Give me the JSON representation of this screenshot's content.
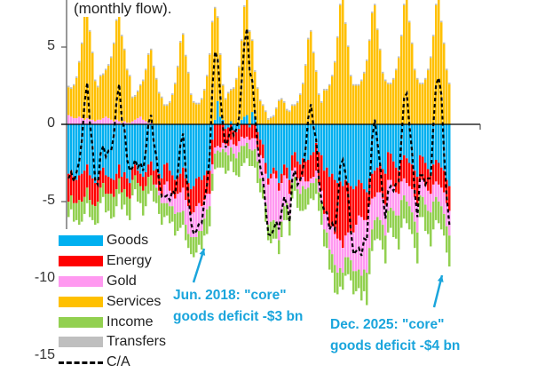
{
  "subtitle": "(monthly flow).",
  "chart_data": {
    "type": "bar",
    "stacked": true,
    "ylim": [
      -15,
      8
    ],
    "yticks": [
      "5",
      "0",
      "-5",
      "-10",
      "-15"
    ],
    "ytick_values": [
      5,
      0,
      -5,
      -10,
      -15
    ],
    "grid": false,
    "legend_position": "bottom-left",
    "colors": {
      "goods": "#00b0f0",
      "energy": "#ff0000",
      "gold": "#ff99f0",
      "services": "#ffc000",
      "income": "#92d050",
      "transfers": "#bfbfbf",
      "ca": "#000000"
    },
    "legend": [
      {
        "key": "goods",
        "label": "Goods"
      },
      {
        "key": "energy",
        "label": "Energy"
      },
      {
        "key": "gold",
        "label": "Gold"
      },
      {
        "key": "services",
        "label": "Services"
      },
      {
        "key": "income",
        "label": "Income"
      },
      {
        "key": "transfers",
        "label": "Transfers"
      },
      {
        "key": "ca",
        "label": "C/A"
      }
    ],
    "series": {
      "goods": [
        -3.2,
        -3.0,
        -3.4,
        -3.6,
        -3.3,
        -3.2,
        -3.0,
        -2.6,
        -3.3,
        -3.5,
        -3.8,
        -3.6,
        -3.0,
        -2.8,
        -3.3,
        -3.4,
        -3.5,
        -3.6,
        -3.2,
        -2.6,
        -3.4,
        -3.1,
        -3.5,
        -3.8,
        -2.8,
        -2.6,
        -3.0,
        -3.2,
        -3.4,
        -3.1,
        -2.6,
        -2.4,
        -3.0,
        -2.9,
        -3.2,
        -3.5,
        -2.6,
        -2.5,
        -3.0,
        -3.3,
        -3.6,
        -3.4,
        -3.2,
        -2.8,
        -3.5,
        -3.8,
        -4.2,
        -4.0,
        -3.5,
        -3.4,
        -3.6,
        -3.3,
        -3.0,
        -3.0,
        -1.0,
        0.3,
        1.5,
        0.5,
        0.3,
        -0.3,
        -0.2,
        0.2,
        -0.4,
        -0.5,
        -0.3,
        0.3,
        0.5,
        0.6,
        -0.2,
        0.8,
        0.5,
        -0.5,
        -1.0,
        -1.3,
        -2.5,
        -3.5,
        -3.2,
        -2.8,
        -3.0,
        -3.8,
        -3.2,
        -2.6,
        -2.8,
        -3.6,
        -2.0,
        -1.8,
        -2.4,
        -2.6,
        -2.2,
        -2.4,
        -2.3,
        -2.0,
        -1.8,
        -1.2,
        -1.8,
        -2.0,
        -3.0,
        -2.8,
        -3.4,
        -3.2,
        -3.6,
        -3.8,
        -3.7,
        -4.0,
        -3.6,
        -3.8,
        -4.0,
        -4.2,
        -4.0,
        -3.6,
        -3.8,
        -4.2,
        -4.4,
        -3.5,
        -3.2,
        -3.0,
        -2.8,
        -2.6,
        -2.9,
        -3.2,
        -1.8,
        -1.9,
        -2.4,
        -2.8,
        -3.0,
        -2.3,
        -2.0,
        -2.2,
        -2.5,
        -2.6,
        -3.0,
        -3.4,
        -2.0,
        -2.1,
        -2.5,
        -2.9,
        -3.2,
        -2.6,
        -2.3,
        -2.5,
        -2.8,
        -3.0,
        -3.6,
        -4.0
      ],
      "energy": [
        -1.8,
        -1.6,
        -1.7,
        -1.5,
        -1.6,
        -1.8,
        -1.7,
        -1.5,
        -1.6,
        -1.7,
        -1.5,
        -1.4,
        -1.1,
        -1.0,
        -1.2,
        -1.1,
        -1.0,
        -1.1,
        -1.0,
        -0.9,
        -1.0,
        -1.1,
        -1.2,
        -1.0,
        -0.8,
        -0.7,
        -0.8,
        -0.8,
        -0.9,
        -0.9,
        -0.8,
        -0.9,
        -0.9,
        -1.0,
        -1.1,
        -1.2,
        -1.3,
        -1.2,
        -1.3,
        -1.2,
        -1.2,
        -1.1,
        -1.2,
        -1.3,
        -1.4,
        -1.5,
        -1.6,
        -1.7,
        -1.8,
        -1.7,
        -1.7,
        -1.6,
        -1.5,
        -1.5,
        -1.6,
        -1.5,
        -1.4,
        -1.5,
        -1.2,
        -1.0,
        -1.2,
        -1.0,
        -0.9,
        -0.9,
        -0.8,
        -0.8,
        -0.9,
        -0.8,
        -0.8,
        -0.9,
        -0.9,
        -1.0,
        -1.0,
        -0.9,
        -0.7,
        -0.4,
        -0.3,
        -0.4,
        -0.5,
        -0.5,
        -0.6,
        -0.7,
        -0.7,
        -0.9,
        -1.0,
        -1.0,
        -1.1,
        -1.1,
        -1.2,
        -1.3,
        -1.4,
        -1.5,
        -1.6,
        -1.8,
        -2.0,
        -2.3,
        -2.8,
        -3.0,
        -3.2,
        -3.4,
        -3.5,
        -3.6,
        -3.8,
        -4.0,
        -3.6,
        -3.2,
        -3.0,
        -2.8,
        -2.5,
        -2.3,
        -2.2,
        -2.0,
        -1.8,
        -1.7,
        -1.6,
        -1.7,
        -1.6,
        -1.8,
        -1.9,
        -2.0,
        -1.8,
        -1.7,
        -1.6,
        -1.6,
        -1.5,
        -1.4,
        -1.5,
        -1.6,
        -1.5,
        -1.6,
        -1.7,
        -1.8,
        -1.6,
        -1.5,
        -1.5,
        -1.4,
        -1.3,
        -1.3,
        -1.4,
        -1.4,
        -1.3,
        -1.4,
        -1.5,
        -1.6
      ],
      "gold": [
        0.6,
        0.5,
        0.4,
        0.4,
        0.5,
        0.4,
        0.3,
        0.4,
        0.3,
        0.3,
        0.2,
        0.3,
        0.3,
        0.4,
        0.5,
        0.4,
        0.3,
        0.2,
        0.3,
        0.2,
        0.1,
        0.2,
        0.1,
        0.1,
        0.2,
        0.3,
        0.4,
        0.5,
        0.3,
        0.2,
        0.1,
        0.1,
        0.0,
        -0.2,
        -0.3,
        -0.4,
        -1.2,
        -1.4,
        -1.0,
        -0.8,
        -1.0,
        -1.2,
        -1.3,
        -1.5,
        -1.6,
        -1.8,
        -1.5,
        -1.6,
        -2.0,
        -1.8,
        -1.6,
        -1.2,
        -1.0,
        -0.8,
        -0.6,
        -0.4,
        -0.3,
        -0.3,
        -0.4,
        -0.5,
        -0.6,
        -0.5,
        -0.6,
        -0.8,
        -0.7,
        -0.6,
        -0.5,
        -0.4,
        -0.6,
        -0.8,
        -0.7,
        -0.9,
        -1.5,
        -1.8,
        -2.0,
        -2.6,
        -2.8,
        -3.0,
        -2.9,
        -3.2,
        -2.5,
        -2.0,
        -1.6,
        -1.4,
        -0.8,
        -0.6,
        -0.7,
        -0.8,
        -0.6,
        -0.5,
        -0.4,
        -0.3,
        -0.4,
        -0.5,
        -0.6,
        -0.8,
        -1.0,
        -1.2,
        -1.5,
        -1.8,
        -2.0,
        -2.2,
        -1.8,
        -1.6,
        -1.4,
        -1.6,
        -1.8,
        -2.5,
        -3.0,
        -3.5,
        -3.8,
        -3.2,
        -3.4,
        -2.8,
        -2.0,
        -1.5,
        -1.6,
        -1.8,
        -1.7,
        -2.0,
        -2.0,
        -1.8,
        -1.6,
        -1.5,
        -1.4,
        -1.2,
        -1.1,
        -1.2,
        -1.3,
        -1.5,
        -1.6,
        -1.8,
        -1.0,
        -1.1,
        -1.2,
        -1.3,
        -1.2,
        -1.1,
        -1.0,
        -1.1,
        -1.2,
        -1.4,
        -1.5,
        -1.6
      ],
      "services": [
        1.8,
        1.8,
        2.1,
        2.6,
        3.5,
        4.8,
        6.8,
        7.3,
        5.7,
        4.3,
        2.6,
        2.1,
        2.8,
        2.8,
        3.0,
        3.4,
        4.0,
        5.0,
        6.4,
        6.8,
        5.6,
        4.6,
        3.4,
        3.0,
        1.5,
        1.5,
        1.7,
        2.0,
        2.5,
        3.3,
        4.4,
        4.7,
        3.7,
        2.9,
        2.0,
        1.7,
        1.2,
        1.2,
        1.4,
        1.9,
        2.6,
        3.7,
        5.3,
        5.8,
        4.4,
        3.3,
        1.9,
        1.4,
        1.3,
        1.3,
        1.6,
        2.2,
        3.1,
        4.5,
        6.6,
        7.2,
        5.4,
        4.0,
        2.2,
        1.6,
        2.0,
        2.0,
        2.3,
        2.9,
        3.7,
        5.1,
        7.1,
        7.7,
        6.0,
        4.6,
        2.9,
        2.3,
        1.5,
        1.2,
        0.8,
        0.3,
        0.4,
        0.5,
        1.0,
        1.5,
        1.6,
        1.4,
        0.9,
        0.8,
        1.2,
        1.2,
        1.4,
        1.9,
        2.6,
        3.8,
        5.5,
        6.0,
        4.6,
        3.4,
        1.9,
        1.4,
        2.2,
        2.2,
        2.5,
        3.1,
        4.0,
        5.6,
        7.7,
        8.3,
        6.5,
        5.0,
        3.1,
        2.5,
        2.5,
        2.5,
        2.8,
        3.3,
        4.1,
        5.4,
        7.2,
        7.7,
        6.1,
        4.8,
        3.3,
        2.8,
        2.6,
        2.6,
        2.9,
        3.5,
        4.3,
        5.7,
        7.7,
        8.3,
        6.6,
        5.2,
        3.5,
        2.9,
        2.6,
        2.6,
        2.9,
        3.5,
        4.3,
        5.7,
        7.7,
        8.3,
        6.6,
        5.2,
        3.5,
        2.6
      ],
      "income": [
        -1.0,
        -0.9,
        -1.2,
        -1.1,
        -1.6,
        -1.3,
        -1.1,
        -1.0,
        -1.1,
        -1.0,
        -1.2,
        -1.4,
        -1.0,
        -0.9,
        -1.2,
        -1.1,
        -1.6,
        -1.3,
        -1.1,
        -1.0,
        -1.1,
        -1.0,
        -1.2,
        -1.4,
        -1.0,
        -0.9,
        -1.2,
        -1.1,
        -1.6,
        -1.3,
        -1.1,
        -1.0,
        -1.1,
        -1.0,
        -1.2,
        -1.4,
        -0.9,
        -0.8,
        -1.1,
        -1.0,
        -1.4,
        -1.2,
        -1.0,
        -0.9,
        -1.0,
        -0.9,
        -1.1,
        -1.3,
        -1.0,
        -0.9,
        -1.2,
        -1.1,
        -1.6,
        -1.3,
        -1.1,
        -1.0,
        -1.1,
        -1.0,
        -1.2,
        -1.4,
        -1.0,
        -0.9,
        -1.2,
        -1.1,
        -1.6,
        -1.3,
        -1.1,
        -1.0,
        -1.1,
        -1.0,
        -1.2,
        -1.4,
        -0.9,
        -0.8,
        -1.1,
        -1.0,
        -1.4,
        -1.2,
        -1.0,
        -0.9,
        -1.0,
        -0.9,
        -1.1,
        -1.3,
        -1.0,
        -0.9,
        -1.2,
        -1.1,
        -1.6,
        -1.3,
        -1.1,
        -1.0,
        -1.1,
        -1.0,
        -1.2,
        -1.4,
        -1.1,
        -1.0,
        -1.3,
        -1.2,
        -1.8,
        -1.4,
        -1.2,
        -1.1,
        -1.2,
        -1.1,
        -1.3,
        -1.5,
        -1.3,
        -1.2,
        -1.6,
        -1.4,
        -2.1,
        -1.7,
        -1.4,
        -1.3,
        -1.4,
        -1.3,
        -1.6,
        -1.8,
        -1.4,
        -1.3,
        -1.7,
        -1.5,
        -2.2,
        -1.8,
        -1.5,
        -1.4,
        -1.5,
        -1.4,
        -1.7,
        -2.0,
        -1.4,
        -1.3,
        -1.7,
        -1.5,
        -2.2,
        -1.8,
        -1.5,
        -1.4,
        -1.5,
        -1.4,
        -1.7,
        -2.0
      ],
      "transfers": [
        0.1,
        0.1,
        0.1,
        0.1,
        0.1,
        0.1,
        0.1,
        0.1,
        0.1,
        0.1,
        0.1,
        0.1,
        0.1,
        0.1,
        0.1,
        0.1,
        0.1,
        0.1,
        0.1,
        0.1,
        0.1,
        0.1,
        0.1,
        0.1,
        0.1,
        0.1,
        0.1,
        0.1,
        0.1,
        0.1,
        0.1,
        0.1,
        0.1,
        0.1,
        0.1,
        0.1,
        0.1,
        0.1,
        0.1,
        0.1,
        0.1,
        0.1,
        0.1,
        0.1,
        0.1,
        0.1,
        0.1,
        0.1,
        0.1,
        0.1,
        0.1,
        0.1,
        0.1,
        0.1,
        0.1,
        0.1,
        0.1,
        0.1,
        0.1,
        0.1,
        0.1,
        0.1,
        0.1,
        0.1,
        0.1,
        0.1,
        0.1,
        0.1,
        0.1,
        0.1,
        0.1,
        0.1,
        0.1,
        0.1,
        0.1,
        0.1,
        0.1,
        0.1,
        0.1,
        0.1,
        0.1,
        0.1,
        0.1,
        0.1,
        0.1,
        0.1,
        0.1,
        0.1,
        0.1,
        0.1,
        0.1,
        0.1,
        0.1,
        0.1,
        0.1,
        0.1,
        0.1,
        0.1,
        0.1,
        0.1,
        0.1,
        0.1,
        0.1,
        0.1,
        0.1,
        0.1,
        0.1,
        0.1,
        0.1,
        0.1,
        0.1,
        0.1,
        0.1,
        0.1,
        0.1,
        0.1,
        0.1,
        0.1,
        0.1,
        0.1,
        0.1,
        0.1,
        0.1,
        0.1,
        0.1,
        0.1,
        0.1,
        0.1,
        0.1,
        0.1,
        0.1,
        0.1,
        0.1,
        0.1,
        0.1,
        0.1,
        0.1,
        0.1,
        0.1,
        0.1,
        0.1,
        0.1,
        0.1,
        0.1
      ],
      "ca": [
        -3.5,
        -3.1,
        -3.7,
        -3.1,
        -2.4,
        -1.0,
        1.4,
        2.7,
        0.1,
        -1.5,
        -3.6,
        -3.9,
        -1.9,
        -1.4,
        -2.1,
        -1.7,
        -1.7,
        -0.7,
        1.5,
        2.6,
        0.3,
        -0.3,
        -2.3,
        -3.0,
        -2.8,
        -2.3,
        -2.8,
        -2.5,
        -3.0,
        -1.7,
        0.1,
        0.6,
        -1.2,
        -2.1,
        -3.7,
        -4.7,
        -4.7,
        -4.6,
        -4.9,
        -4.3,
        -4.5,
        -3.1,
        -1.3,
        -0.6,
        -3.0,
        -4.6,
        -6.4,
        -7.1,
        -6.9,
        -6.4,
        -6.4,
        -4.9,
        -3.9,
        -2.0,
        2.4,
        4.7,
        4.2,
        1.8,
        -0.2,
        -1.5,
        -0.9,
        -0.1,
        -0.7,
        -0.3,
        0.4,
        2.8,
        5.2,
        6.2,
        3.4,
        2.8,
        0.7,
        -1.4,
        -2.8,
        -3.5,
        -5.4,
        -7.1,
        -7.2,
        -6.8,
        -6.3,
        -6.8,
        -5.6,
        -4.7,
        -5.2,
        -6.3,
        -3.5,
        -3.0,
        -3.9,
        -3.6,
        -2.9,
        -1.6,
        0.4,
        1.3,
        -0.2,
        -1.0,
        -3.6,
        -5.0,
        -5.6,
        -5.7,
        -6.8,
        -6.4,
        -6.8,
        -5.3,
        -2.7,
        -2.3,
        -3.2,
        -4.6,
        -6.9,
        -8.4,
        -8.2,
        -8.0,
        -8.5,
        -7.4,
        -7.5,
        -4.2,
        -0.9,
        0.3,
        -1.2,
        -2.6,
        -4.7,
        -6.1,
        -4.3,
        -4.0,
        -4.3,
        -3.8,
        -3.7,
        -0.9,
        1.7,
        2.0,
        -0.1,
        -1.8,
        -4.4,
        -6.0,
        -3.3,
        -3.3,
        -3.9,
        -3.5,
        -3.5,
        0.0,
        2.6,
        3.0,
        1.9,
        -1.9,
        -4.7,
        -6.5
      ]
    },
    "annotations": [
      {
        "line1": "Jun. 2018: \"core\"",
        "line2": "goods deficit -$3 bn"
      },
      {
        "line1": "Dec. 2025: \"core\"",
        "line2": "goods deficit -$4 bn"
      }
    ],
    "annotation_color": "#1aa5dc"
  }
}
